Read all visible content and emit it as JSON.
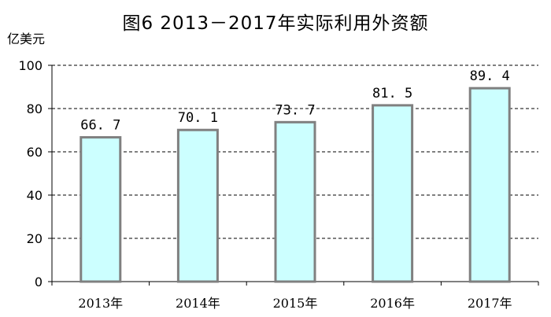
{
  "chart_data": {
    "type": "bar",
    "title": "图6  2013－2017年实际利用外资额",
    "ylabel": "亿美元",
    "xlabel": "",
    "categories": [
      "2013年",
      "2014年",
      "2015年",
      "2016年",
      "2017年"
    ],
    "values": [
      66.7,
      70.1,
      73.7,
      81.5,
      89.4
    ],
    "value_labels": [
      "66. 7",
      "70. 1",
      "73. 7",
      "81. 5",
      "89. 4"
    ],
    "ylim": [
      0,
      100
    ],
    "yticks": [
      "0",
      "20",
      "40",
      "60",
      "80",
      "100"
    ],
    "grid": "dashed horizontal",
    "bar_fill": "#ccffff",
    "bar_stroke": "#808080"
  }
}
